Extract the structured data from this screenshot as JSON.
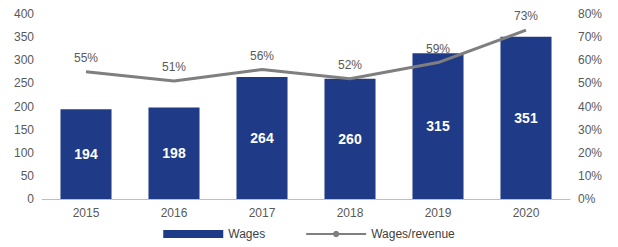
{
  "chart_data": {
    "type": "bar",
    "categories": [
      "2015",
      "2016",
      "2017",
      "2018",
      "2019",
      "2020"
    ],
    "series": [
      {
        "name": "Wages",
        "type": "bar",
        "color": "#1f3b87",
        "values": [
          194,
          198,
          264,
          260,
          315,
          351
        ]
      },
      {
        "name": "Wages/revenue",
        "type": "line",
        "color": "#7f7f7f",
        "axis": "y2",
        "values": [
          55,
          51,
          56,
          52,
          59,
          73
        ],
        "value_labels": [
          "55%",
          "51%",
          "56%",
          "52%",
          "59%",
          "73%"
        ]
      }
    ],
    "ylim": [
      0,
      400
    ],
    "yticks": [
      0,
      50,
      100,
      150,
      200,
      250,
      300,
      350,
      400
    ],
    "y2lim": [
      0,
      80
    ],
    "y2ticks": [
      {
        "value": 0,
        "label": "0%"
      },
      {
        "value": 10,
        "label": "10%"
      },
      {
        "value": 20,
        "label": "20%"
      },
      {
        "value": 30,
        "label": "30%"
      },
      {
        "value": 40,
        "label": "40%"
      },
      {
        "value": 50,
        "label": "50%"
      },
      {
        "value": 60,
        "label": "60%"
      },
      {
        "value": 70,
        "label": "70%"
      },
      {
        "value": 80,
        "label": "80%"
      }
    ],
    "data_labels": true,
    "grid": false,
    "legend": "bottom"
  }
}
